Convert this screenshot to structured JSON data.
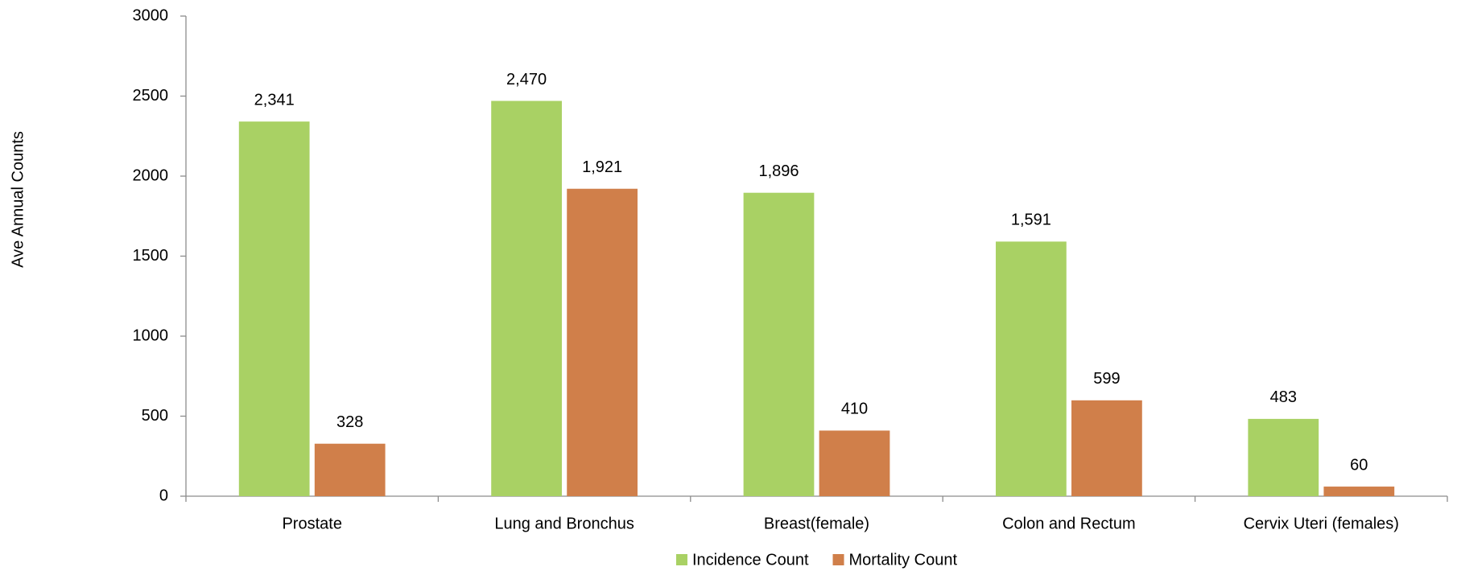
{
  "chart_data": {
    "type": "bar",
    "categories": [
      "Prostate",
      "Lung and Bronchus",
      "Breast(female)",
      "Colon and Rectum",
      "Cervix Uteri (females)"
    ],
    "series": [
      {
        "name": "Incidence Count",
        "color": "#a9d164",
        "values": [
          2341,
          2470,
          1896,
          1591,
          483
        ],
        "value_labels": [
          "2,341",
          "2,470",
          "1,896",
          "1,591",
          "483"
        ]
      },
      {
        "name": "Mortality Count",
        "color": "#d07f4a",
        "values": [
          328,
          1921,
          410,
          599,
          60
        ],
        "value_labels": [
          "328",
          "1,921",
          "410",
          "599",
          "60"
        ]
      }
    ],
    "y_label": "Ave Annual Counts",
    "ylim": [
      0,
      3000
    ],
    "yticks": [
      0,
      500,
      1000,
      1500,
      2000,
      2500,
      3000
    ],
    "grid": false,
    "legend": "bottom"
  }
}
